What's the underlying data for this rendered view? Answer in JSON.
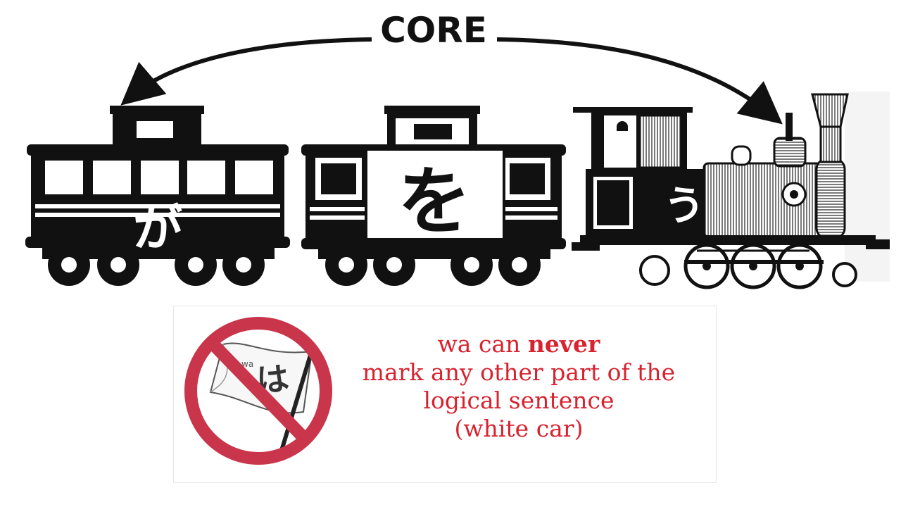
{
  "diagram": {
    "arrow_label": "CORE",
    "cars": [
      {
        "name": "left-caboose",
        "kana": "が"
      },
      {
        "name": "middle-car",
        "kana": "を"
      },
      {
        "name": "locomotive",
        "kana": "う"
      }
    ]
  },
  "note": {
    "flag_kana": "は",
    "flag_romaji": "wa",
    "line1_prefix": "wa can ",
    "line1_bold": "never",
    "line2": "mark any other part of the",
    "line3": "logical sentence",
    "line4": "(white car)",
    "text_color": "#d8232f",
    "sign_color": "#c9354a"
  }
}
